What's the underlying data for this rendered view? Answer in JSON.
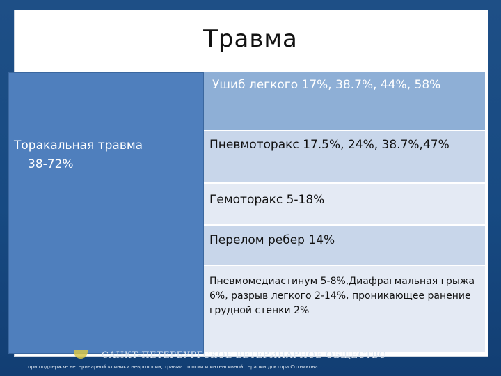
{
  "slide": {
    "title": "Травма",
    "left_cell": {
      "line1": "Торакальная травма",
      "line2": "38-72%"
    },
    "rows": [
      "Ушиб легкого 17%, 38.7%, 44%, 58%",
      "Пневмоторакс 17.5%, 24%, 38.7%,47%",
      "Гемоторакс 5-18%",
      "Перелом ребер 14%",
      "Пневмомедиастинум 5-8%,Диафрагмальная грыжа 6%, разрыв легкого 2-14%, проникающее ранение грудной стенки 2%"
    ]
  },
  "footer": {
    "organization": "САНКТ-ПЕТЕРБУРГСКОЕ ВЕТЕРИНАРНОЕ ОБЩЕСТВО",
    "subtitle": "при поддержке ветеринарной клиники неврологии, травматологии и интенсивной терапии доктора Сотникова"
  }
}
